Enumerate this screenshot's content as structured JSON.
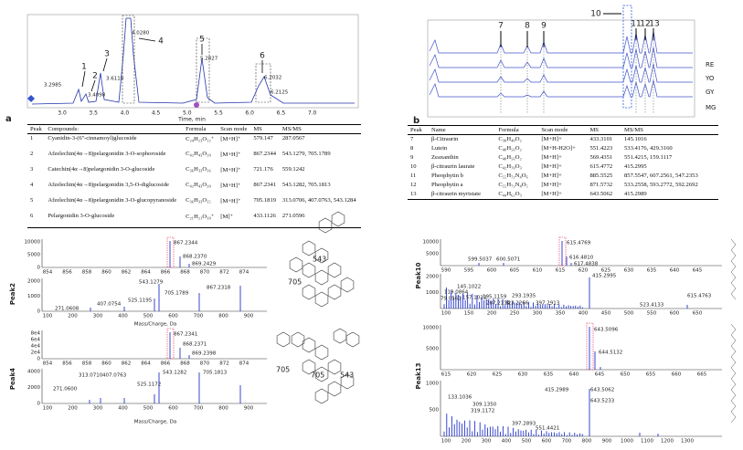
{
  "panel_a": {
    "label": "a",
    "chromatogram": {
      "x_ticks": [
        "3.0",
        "3.5",
        "4.0",
        "4.5",
        "5.0",
        "5.5",
        "6.0",
        "6.5",
        "7.0"
      ],
      "x_label": "Time, min",
      "peak_numbers": [
        "1",
        "2",
        "3",
        "4",
        "5",
        "6"
      ],
      "retention_labels": [
        "3.2985",
        "3.4098",
        "3.6119",
        "4.0280",
        "5.2827",
        "6.2032",
        "6.2125"
      ]
    },
    "table": {
      "header": [
        "Peak",
        "Compounds:",
        "Formula",
        "Scan mode",
        "MS",
        "MS/MS"
      ],
      "rows": [
        [
          "1",
          "Cyanidin-3-(6''-cinnamoyl)glucoside",
          "C₂₄H₂₃O₁₂⁺",
          "[M+H]⁺",
          "579.147",
          "287.0567"
        ],
        [
          "2",
          "Afzelechin(4α→8)pelargonidin 3-O-sophoroside",
          "C₄₂H₄₃O₂₀",
          "[M+H]⁺",
          "867.2344",
          "543.1279, 705.1789"
        ],
        [
          "3",
          "Catechin(4α→8)pelargonidin 3-O-glucoside",
          "C₃₆H₃₃O₁₆",
          "[M+H]⁺",
          "721.176",
          "559.1242"
        ],
        [
          "4",
          "Afzelechin(4α→8)pelargonidin 3,5-O-diglucoside",
          "C₄₂H₄₃O₂₀",
          "[M+H]⁺",
          "867.2341",
          "543.1282, 705.1813"
        ],
        [
          "5",
          "Afzelechin(4α→8)pelargonidin 3-O-glucopyranoside",
          "C₃₆H₃₃O₁₅",
          "[M+H]⁺",
          "705.1819",
          "313.0706, 407.0763, 543.1284"
        ],
        [
          "6",
          "Pelargonidin 3-O-glucoside",
          "C₂₁H₂₁O₁₀⁺",
          "[M]⁺",
          "433.1126",
          "271.0596"
        ]
      ]
    },
    "spectra": [
      {
        "name": "Peak2",
        "x_label": "Mass/Charge, Da",
        "fragment_labels": [
          "705",
          "543"
        ],
        "top": {
          "y_ticks": [
            "10000",
            "5000",
            "0"
          ],
          "x_ticks": [
            "854",
            "856",
            "858",
            "860",
            "862",
            "864",
            "866",
            "868",
            "870",
            "872",
            "874"
          ],
          "peak_labels": [
            "867.2344",
            "868.2370",
            "869.2429"
          ]
        },
        "bottom": {
          "y_ticks": [
            "2000",
            "1000",
            "0"
          ],
          "x_ticks": [
            "100",
            "200",
            "300",
            "400",
            "500",
            "600",
            "700",
            "800",
            "900"
          ],
          "peak_labels": [
            "543.1279",
            "705.1789",
            "867.2318",
            "525.1195",
            "407.0754",
            "271.0608"
          ]
        }
      },
      {
        "name": "Peak4",
        "x_label": "Mass/Charge, Da",
        "fragment_labels": [
          "705",
          "705",
          "543"
        ],
        "top": {
          "y_ticks": [
            "8e4",
            "6e4",
            "4e4",
            "2e4",
            "0"
          ],
          "x_ticks": [
            "854",
            "856",
            "858",
            "860",
            "862",
            "864",
            "866",
            "868",
            "870",
            "872",
            "874"
          ],
          "peak_labels": [
            "867.2341",
            "868.2371",
            "869.2398"
          ]
        },
        "bottom": {
          "y_ticks": [
            "4000",
            "2000",
            "0"
          ],
          "x_ticks": [
            "100",
            "200",
            "300",
            "400",
            "500",
            "600",
            "700",
            "800",
            "900"
          ],
          "peak_labels": [
            "543.1282",
            "705.1813",
            "313.0710",
            "407.0763",
            "525.1172",
            "271.0600"
          ]
        }
      }
    ]
  },
  "panel_b": {
    "label": "b",
    "chromatogram": {
      "peak_numbers": [
        "7",
        "8",
        "9",
        "10",
        "11",
        "12",
        "13"
      ],
      "sample_labels": [
        "RE",
        "YO",
        "GY",
        "MG"
      ]
    },
    "table": {
      "header": [
        "Peak",
        "Name",
        "Formula",
        "Scan mode",
        "MS",
        "MS/MS"
      ],
      "rows": [
        [
          "7",
          "β-Citraurin",
          "C₃₀H₄₀O₂",
          "[M+H]+",
          "433.3101",
          "145.1016"
        ],
        [
          "8",
          "Lutein",
          "C₄₀H₅₆O₂",
          "[M+H-H2O]+",
          "551.4223",
          "533.4176, 429.3160"
        ],
        [
          "9",
          "Zeaxanthin",
          "C₄₀H₅₆O₂",
          "[M+H]+",
          "569.4351",
          "551.4215, 159.1117"
        ],
        [
          "10",
          "β-citraurin laurate",
          "C₄₂H₇₀O₃",
          "[M+H]+",
          "615.4772",
          "415.2995"
        ],
        [
          "11",
          "Pheophytin b",
          "C₅₅H₇₂N₄O₆",
          "[M+H]+",
          "885.5525",
          "857.5547, 607.2561, 547.2353"
        ],
        [
          "12",
          "Pheophytin a",
          "C₅₅H₇₂N₄O₅",
          "[M+H]+",
          "871.5732",
          "533.2558, 593.2772, 592.2692"
        ],
        [
          "13",
          "β-citraurin myristate",
          "C₄₄H₆₂O₃",
          "[M+H]+",
          "643.5062",
          "415.2989"
        ]
      ]
    },
    "spectra": [
      {
        "name": "Peak10",
        "top": {
          "y_ticks": [
            "10000",
            "5000"
          ],
          "x_ticks": [
            "590",
            "595",
            "600",
            "605",
            "610",
            "615",
            "620",
            "625",
            "630",
            "635",
            "640",
            "645"
          ],
          "peak_labels": [
            "615.4769",
            "616.4810",
            "617.4838",
            "599.5037",
            "600.5071"
          ]
        },
        "bottom": {
          "y_ticks": [
            "2000",
            "1000"
          ],
          "x_ticks": [
            "100",
            "150",
            "200",
            "250",
            "300",
            "350",
            "400",
            "450",
            "500",
            "550",
            "600",
            "650"
          ],
          "peak_labels": [
            "415.2995",
            "145.1022",
            "119.0864",
            "157.1023",
            "195.1159",
            "79.0563",
            "293.1935",
            "287.2114",
            "323.2266",
            "397.2913",
            "523.4133",
            "615.4763"
          ]
        }
      },
      {
        "name": "Peak13",
        "top": {
          "y_ticks": [
            "10000",
            "5000"
          ],
          "x_ticks": [
            "615",
            "620",
            "625",
            "630",
            "635",
            "640",
            "645",
            "650",
            "655",
            "660",
            "665"
          ],
          "peak_labels": [
            "643.5096",
            "644.5132"
          ]
        },
        "bottom": {
          "y_ticks": [
            "1000",
            "500"
          ],
          "x_ticks": [
            "100",
            "200",
            "300",
            "400",
            "500",
            "600",
            "700",
            "800",
            "900",
            "1000",
            "1100",
            "1200",
            "1300"
          ],
          "peak_labels": [
            "415.2989",
            "643.5062",
            "643.5233",
            "133.1036",
            "309.1350",
            "319.1172",
            "397.2893",
            "551.4421"
          ]
        }
      }
    ]
  }
}
